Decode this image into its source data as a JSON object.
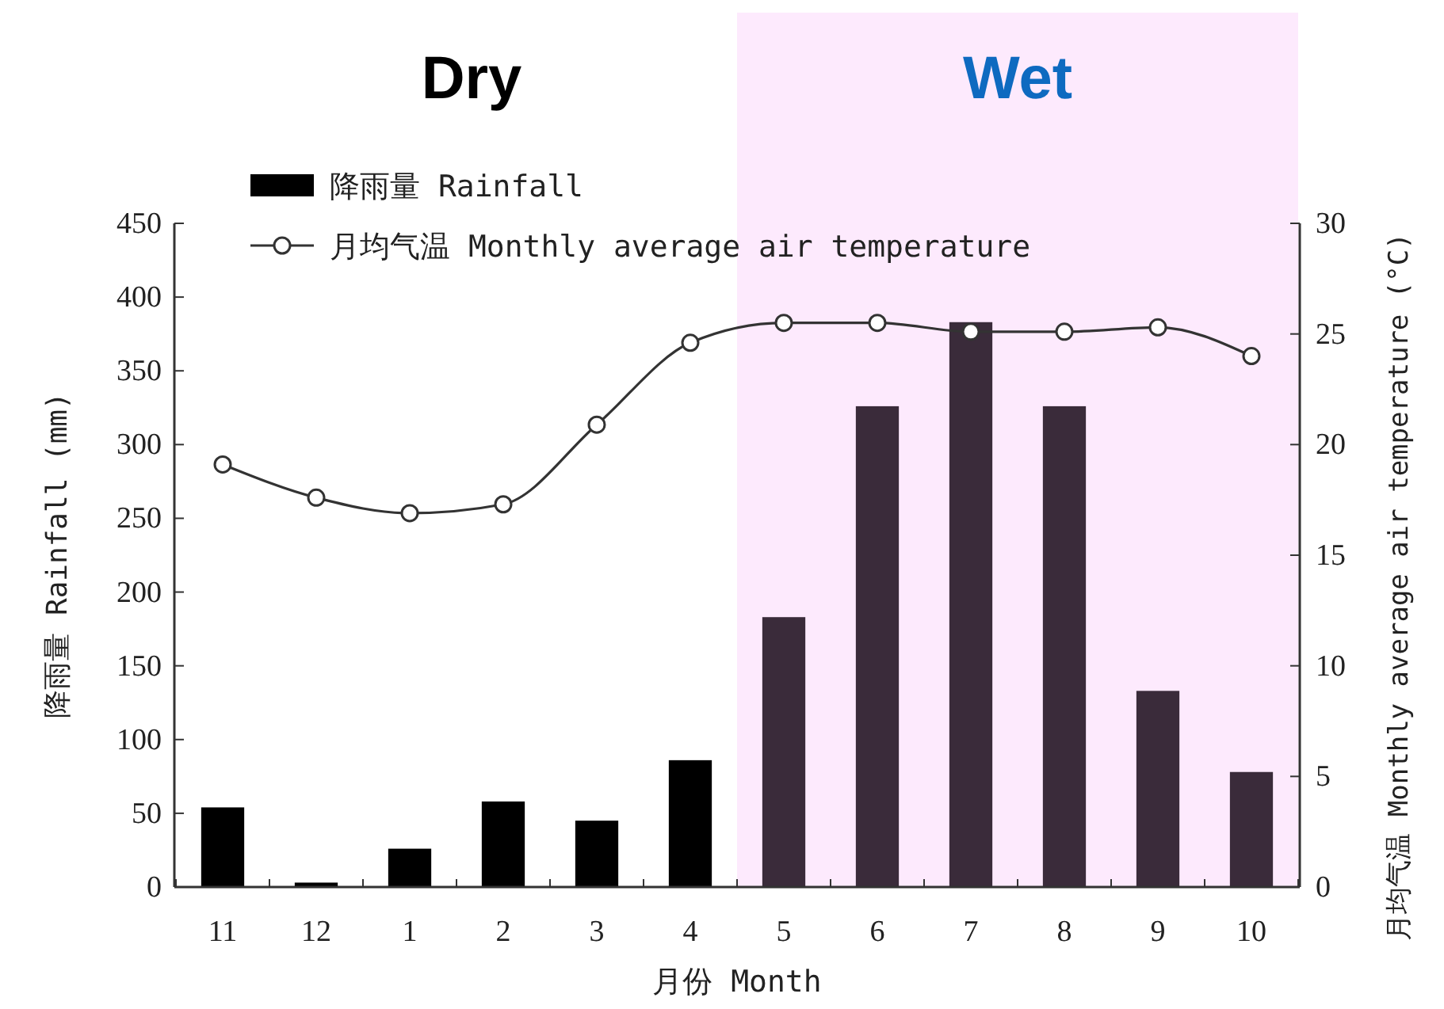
{
  "chart_data": {
    "type": "bar",
    "xlabel": "月份 Month",
    "ylabel": "降雨量 Rainfall (mm)",
    "y2label": "月均气温 Monthly average air temperature (°C)",
    "categories": [
      "11",
      "12",
      "1",
      "2",
      "3",
      "4",
      "5",
      "6",
      "7",
      "8",
      "9",
      "10"
    ],
    "series": [
      {
        "name": "降雨量 Rainfall",
        "colors": [
          "#000000",
          "#000000",
          "#000000",
          "#000000",
          "#000000",
          "#000000",
          "#3a2b3a",
          "#3a2b3a",
          "#3a2b3a",
          "#3a2b3a",
          "#3a2b3a",
          "#3a2b3a"
        ],
        "values": [
          54,
          3,
          26,
          58,
          45,
          86,
          183,
          326,
          383,
          326,
          133,
          78
        ]
      },
      {
        "name": "月均气温 Monthly average air temperature",
        "type": "line",
        "axis": "y2",
        "color": "#333333",
        "marker": "circle",
        "values": [
          19.1,
          17.6,
          16.9,
          17.3,
          20.9,
          24.6,
          25.5,
          25.5,
          25.1,
          25.1,
          25.3,
          24.0
        ]
      }
    ],
    "ylim": [
      0,
      450
    ],
    "yticks": [
      0,
      50,
      100,
      150,
      200,
      250,
      300,
      350,
      400,
      450
    ],
    "y2lim": [
      0,
      30
    ],
    "y2ticks": [
      0,
      5,
      10,
      15,
      20,
      25,
      30
    ],
    "bands": [
      {
        "axis": "x",
        "from": "5",
        "to": "10",
        "label": "Wet",
        "color": "#fdeafd"
      }
    ],
    "annotations": [
      "Dry"
    ],
    "legend": "top left",
    "grid": false
  }
}
